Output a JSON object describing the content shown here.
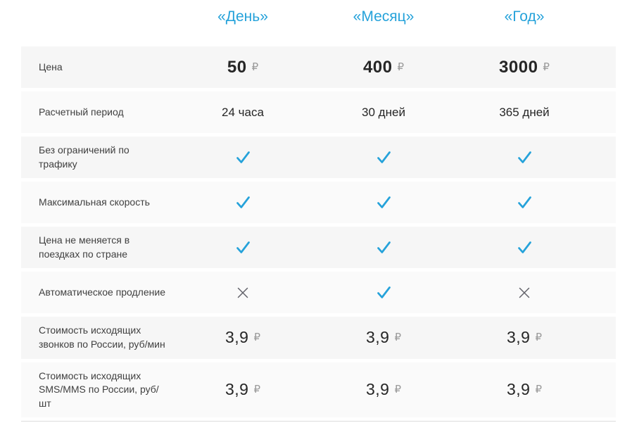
{
  "colors": {
    "accent": "#25a2da",
    "row_odd_bg": "#f6f6f6",
    "row_even_bg": "#fafafa",
    "label_text": "#404040",
    "value_text": "#262626",
    "ruble_sign": "#9a9a9a",
    "cross": "#62626a"
  },
  "header": {
    "plans": [
      "«День»",
      "«Месяц»",
      "«Год»"
    ]
  },
  "table": {
    "rows": [
      {
        "label": "Цена",
        "type": "price",
        "emphasis": "bold",
        "values": [
          {
            "amount": "50",
            "currency": "₽"
          },
          {
            "amount": "400",
            "currency": "₽"
          },
          {
            "amount": "3000",
            "currency": "₽"
          }
        ]
      },
      {
        "label": "Расчетный период",
        "type": "text",
        "values": [
          "24 часа",
          "30 дней",
          "365 дней"
        ]
      },
      {
        "label": "Без ограничений по трафику",
        "type": "icon",
        "values": [
          "check",
          "check",
          "check"
        ]
      },
      {
        "label": "Максимальная скорость",
        "type": "icon",
        "values": [
          "check",
          "check",
          "check"
        ]
      },
      {
        "label": "Цена не меняется в поездках по стране",
        "type": "icon",
        "values": [
          "check",
          "check",
          "check"
        ]
      },
      {
        "label": "Автоматическое продление",
        "type": "icon",
        "values": [
          "cross",
          "check",
          "cross"
        ]
      },
      {
        "label": "Стоимость исходящих звонков по России, руб/мин",
        "type": "price",
        "emphasis": "regular",
        "values": [
          {
            "amount": "3,9",
            "currency": "₽"
          },
          {
            "amount": "3,9",
            "currency": "₽"
          },
          {
            "amount": "3,9",
            "currency": "₽"
          }
        ]
      },
      {
        "label": "Стоимость исходящих SMS/MMS по России, руб/шт",
        "type": "price",
        "emphasis": "regular",
        "values": [
          {
            "amount": "3,9",
            "currency": "₽"
          },
          {
            "amount": "3,9",
            "currency": "₽"
          },
          {
            "amount": "3,9",
            "currency": "₽"
          }
        ]
      }
    ]
  }
}
